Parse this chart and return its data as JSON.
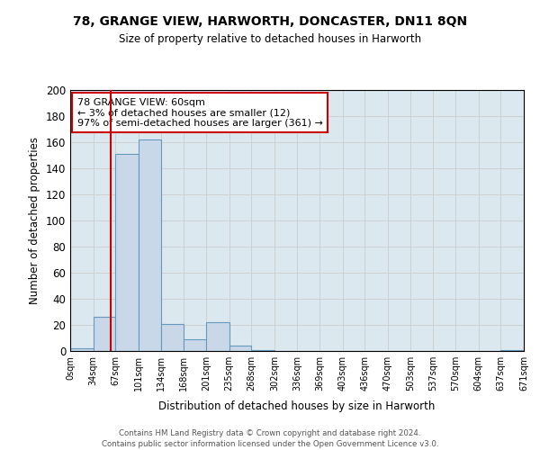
{
  "title1": "78, GRANGE VIEW, HARWORTH, DONCASTER, DN11 8QN",
  "title2": "Size of property relative to detached houses in Harworth",
  "xlabel": "Distribution of detached houses by size in Harworth",
  "ylabel": "Number of detached properties",
  "bar_edges": [
    0,
    34,
    67,
    101,
    134,
    168,
    201,
    235,
    268,
    302,
    336,
    369,
    403,
    436,
    470,
    503,
    537,
    570,
    604,
    637,
    671
  ],
  "bar_heights": [
    2,
    26,
    151,
    162,
    21,
    9,
    22,
    4,
    1,
    0,
    0,
    0,
    0,
    0,
    0,
    0,
    0,
    0,
    0,
    1
  ],
  "bar_color": "#c8d8e8",
  "bar_edgecolor": "#6699bb",
  "tick_labels": [
    "0sqm",
    "34sqm",
    "67sqm",
    "101sqm",
    "134sqm",
    "168sqm",
    "201sqm",
    "235sqm",
    "268sqm",
    "302sqm",
    "336sqm",
    "369sqm",
    "403sqm",
    "436sqm",
    "470sqm",
    "503sqm",
    "537sqm",
    "570sqm",
    "604sqm",
    "637sqm",
    "671sqm"
  ],
  "vline_x": 60,
  "vline_color": "#cc0000",
  "ylim": [
    0,
    200
  ],
  "yticks": [
    0,
    20,
    40,
    60,
    80,
    100,
    120,
    140,
    160,
    180,
    200
  ],
  "annotation_title": "78 GRANGE VIEW: 60sqm",
  "annotation_line1": "← 3% of detached houses are smaller (12)",
  "annotation_line2": "97% of semi-detached houses are larger (361) →",
  "annotation_box_color": "#ffffff",
  "annotation_box_edgecolor": "#cc0000",
  "footer1": "Contains HM Land Registry data © Crown copyright and database right 2024.",
  "footer2": "Contains public sector information licensed under the Open Government Licence v3.0.",
  "bg_color": "#ffffff",
  "grid_color": "#cccccc",
  "ax_facecolor": "#dce8f0"
}
